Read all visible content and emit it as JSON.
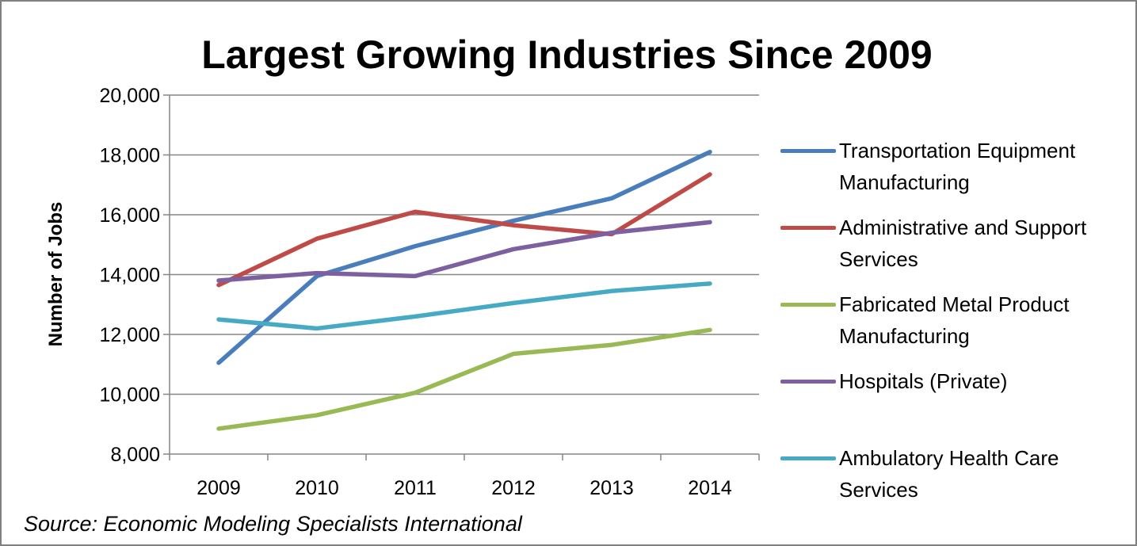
{
  "chart_data": {
    "type": "line",
    "title": "Largest Growing Industries Since 2009",
    "ylabel": "Number of Jobs",
    "xlabel": "",
    "categories": [
      "2009",
      "2010",
      "2011",
      "2012",
      "2013",
      "2014"
    ],
    "ylim": [
      8000,
      20000
    ],
    "yticks": [
      8000,
      10000,
      12000,
      14000,
      16000,
      18000,
      20000
    ],
    "ytick_labels": [
      "8,000",
      "10,000",
      "12,000",
      "14,000",
      "16,000",
      "18,000",
      "20,000"
    ],
    "grid": true,
    "legend_position": "right",
    "series": [
      {
        "name": "Transportation Equipment Manufacturing",
        "color": "#4a7ebb",
        "values": [
          11050,
          13950,
          14950,
          15800,
          16550,
          18100
        ]
      },
      {
        "name": "Administrative and Support Services",
        "color": "#be4b48",
        "values": [
          13650,
          15200,
          16100,
          15650,
          15350,
          17350
        ]
      },
      {
        "name": "Fabricated Metal Product Manufacturing",
        "color": "#98b954",
        "values": [
          8850,
          9300,
          10050,
          11350,
          11650,
          12150
        ]
      },
      {
        "name": "Hospitals (Private)",
        "color": "#7d60a0",
        "values": [
          13800,
          14050,
          13950,
          14850,
          15400,
          15750
        ]
      },
      {
        "name": "Ambulatory Health Care Services",
        "color": "#46aac5",
        "values": [
          12500,
          12200,
          12600,
          13050,
          13450,
          13700
        ]
      }
    ],
    "source": "Source: Economic Modeling Specialists International"
  }
}
